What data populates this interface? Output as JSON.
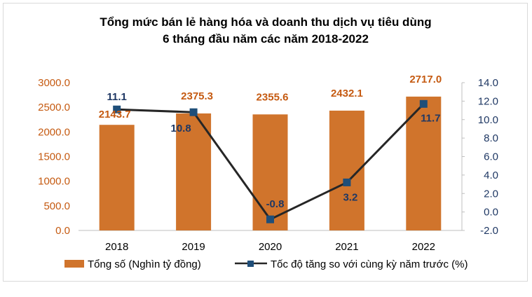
{
  "chart_data": {
    "type": "bar+line",
    "title_line1": "Tổng mức bán lẻ hàng hóa và doanh thu dịch vụ tiêu dùng",
    "title_line2": "6 tháng đầu năm các năm 2018-2022",
    "categories": [
      "2018",
      "2019",
      "2020",
      "2021",
      "2022"
    ],
    "bar_series": {
      "name": "Tổng số (Nghìn tỷ đồng)",
      "values": [
        2143.7,
        2375.3,
        2355.6,
        2432.1,
        2717.0
      ],
      "labels": [
        "2143.7",
        "2375.3",
        "2355.6",
        "2432.1",
        "2717.0"
      ],
      "color": "#d0742c"
    },
    "line_series": {
      "name": "Tốc độ tăng so với cùng kỳ năm trước (%)",
      "values": [
        11.1,
        10.8,
        -0.8,
        3.2,
        11.7
      ],
      "labels": [
        "11.1",
        "10.8",
        "-0.8",
        "3.2",
        "11.7"
      ],
      "color": "#262626",
      "marker_color": "#1f4e79"
    },
    "y_left": {
      "min": 0,
      "max": 3000,
      "step": 500,
      "tick_labels": [
        "0.0",
        "500.0",
        "1000.0",
        "1500.0",
        "2000.0",
        "2500.0",
        "3000.0"
      ],
      "color": "#c55a11"
    },
    "y_right": {
      "min": -2,
      "max": 14,
      "step": 2,
      "tick_labels": [
        "-2.0",
        "0.0",
        "2.0",
        "4.0",
        "6.0",
        "8.0",
        "10.0",
        "12.0",
        "14.0"
      ],
      "color": "#1f3864"
    },
    "legend_position": "bottom"
  }
}
